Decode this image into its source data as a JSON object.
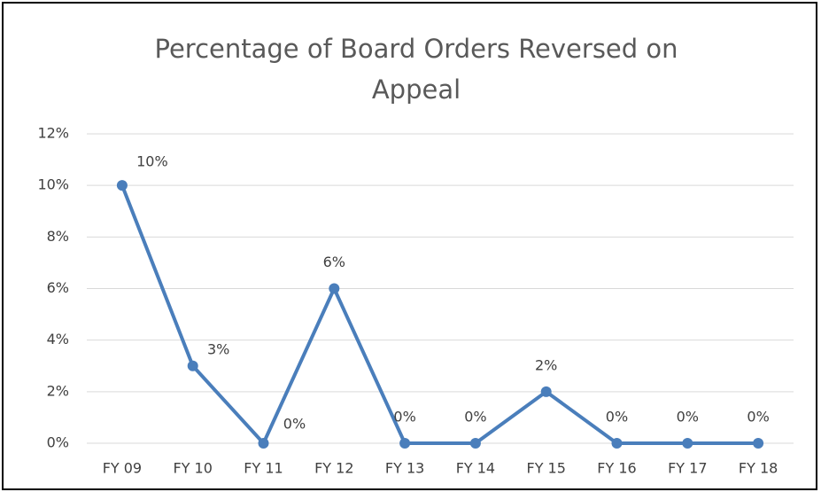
{
  "chart_data": {
    "type": "line",
    "title": "Percentage of Board Orders Reversed on Appeal",
    "categories": [
      "FY 09",
      "FY 10",
      "FY 11",
      "FY 12",
      "FY 13",
      "FY 14",
      "FY 15",
      "FY 16",
      "FY 17",
      "FY 18"
    ],
    "values": [
      10,
      3,
      0,
      6,
      0,
      0,
      2,
      0,
      0,
      0
    ],
    "value_labels": [
      "10%",
      "3%",
      "0%",
      "6%",
      "0%",
      "0%",
      "2%",
      "0%",
      "0%",
      "0%"
    ],
    "color": "#4a7ebb",
    "ylim": [
      0,
      12
    ],
    "yticks": [
      {
        "value": 0,
        "label": "0%"
      },
      {
        "value": 2,
        "label": "2%"
      },
      {
        "value": 4,
        "label": "4%"
      },
      {
        "value": 6,
        "label": "6%"
      },
      {
        "value": 8,
        "label": "8%"
      },
      {
        "value": 10,
        "label": "10%"
      },
      {
        "value": 12,
        "label": "12%"
      }
    ],
    "grid": true
  }
}
